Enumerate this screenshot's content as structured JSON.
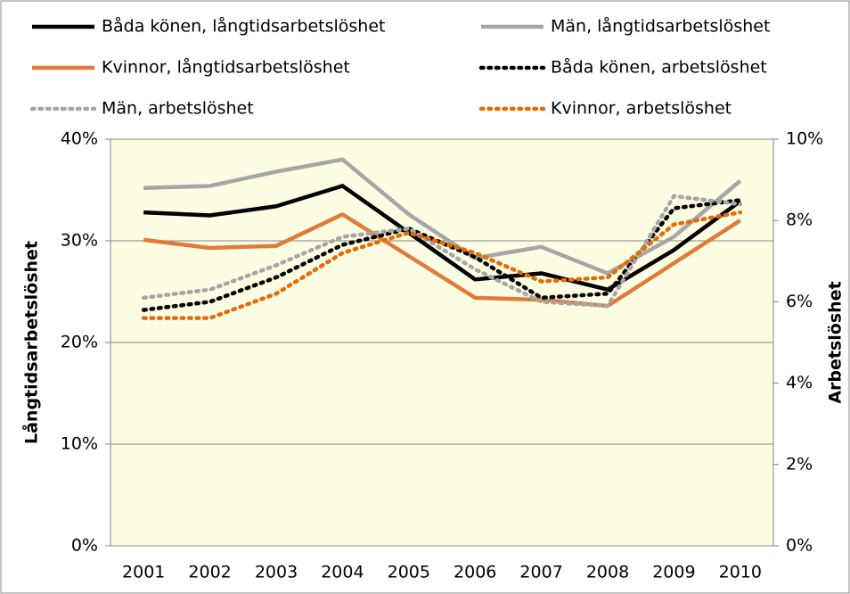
{
  "chart_data": {
    "type": "line",
    "y_label": "Långtidsarbetslöshet",
    "y2_label": "Arbetslöshet",
    "categories": [
      "2001",
      "2002",
      "2003",
      "2004",
      "2005",
      "2006",
      "2007",
      "2008",
      "2009",
      "2010"
    ],
    "ylim": [
      0,
      40
    ],
    "yticks": [
      {
        "value": 0,
        "label": "0%"
      },
      {
        "value": 10,
        "label": "10%"
      },
      {
        "value": 20,
        "label": "20%"
      },
      {
        "value": 30,
        "label": "30%"
      },
      {
        "value": 40,
        "label": "40%"
      }
    ],
    "y2lim": [
      0,
      10
    ],
    "y2ticks": [
      {
        "value": 0,
        "label": "0%"
      },
      {
        "value": 2,
        "label": "2%"
      },
      {
        "value": 4,
        "label": "4%"
      },
      {
        "value": 6,
        "label": "6%"
      },
      {
        "value": 8,
        "label": "8%"
      },
      {
        "value": 10,
        "label": "10%"
      }
    ],
    "grid": true,
    "legend": "top",
    "series": [
      {
        "name": "Båda könen, långtidsarbetslöshet",
        "color": "#000000",
        "linestyle": "solid",
        "values": [
          32.8,
          32.5,
          33.4,
          35.4,
          30.8,
          26.2,
          26.8,
          25.2,
          29.1,
          33.9
        ]
      },
      {
        "name": "Män, långtidsarbetslöshet",
        "color": "#a6a6a6",
        "linestyle": "solid",
        "values": [
          35.2,
          35.4,
          36.8,
          38.0,
          32.6,
          28.3,
          29.4,
          26.8,
          30.4,
          35.9
        ]
      },
      {
        "name": "Kvinnor, långtidsarbetslöshet",
        "color": "#e07b39",
        "linestyle": "solid",
        "values": [
          30.1,
          29.3,
          29.5,
          32.6,
          28.5,
          24.4,
          24.2,
          23.6,
          27.8,
          32.0
        ]
      },
      {
        "name": "Båda könen, arbetslöshet",
        "color": "#000000",
        "linestyle": "dotted",
        "axis": "y2",
        "values": [
          5.8,
          6.0,
          6.6,
          7.4,
          7.8,
          7.1,
          6.1,
          6.2,
          8.3,
          8.5
        ]
      },
      {
        "name": "Män, arbetslöshet",
        "color": "#a6a6a6",
        "linestyle": "dotted",
        "axis": "y2",
        "values": [
          6.1,
          6.3,
          6.9,
          7.6,
          7.8,
          6.8,
          6.0,
          5.9,
          8.6,
          8.4
        ]
      },
      {
        "name": "Kvinnor, arbetslöshet",
        "color": "#e36c09",
        "linestyle": "dotted",
        "axis": "y2",
        "values": [
          5.6,
          5.6,
          6.2,
          7.2,
          7.7,
          7.2,
          6.5,
          6.6,
          7.9,
          8.2
        ]
      }
    ]
  }
}
